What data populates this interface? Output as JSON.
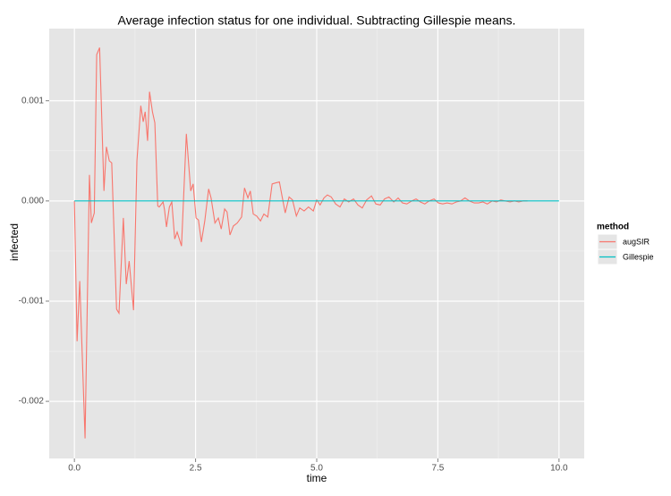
{
  "chart_data": {
    "type": "line",
    "title": "Average infection status for one individual. Subtracting Gillespie means.",
    "x_label": "time",
    "y_label": "infected",
    "legend_title": "method",
    "legend_position": "right",
    "grid": true,
    "xlim": [
      -0.52,
      10.52
    ],
    "ylim": [
      -0.00257,
      0.00172
    ],
    "xticks": [
      {
        "value": 0,
        "label": "0.0"
      },
      2.5,
      {
        "value": 5,
        "label": "5.0"
      },
      7.5,
      {
        "value": 10,
        "label": "10.0"
      }
    ],
    "yticks": [
      -0.002,
      -0.001,
      {
        "value": 0,
        "label": "0.000"
      },
      0.001
    ],
    "series": [
      {
        "name": "augSIR",
        "color": "#F8766D",
        "x": [
          0,
          0.055,
          0.11,
          0.22,
          0.31,
          0.35,
          0.41,
          0.46,
          0.52,
          0.61,
          0.66,
          0.72,
          0.77,
          0.87,
          0.92,
          1.01,
          1.07,
          1.13,
          1.22,
          1.29,
          1.37,
          1.42,
          1.46,
          1.51,
          1.55,
          1.61,
          1.66,
          1.72,
          1.75,
          1.83,
          1.86,
          1.9,
          1.96,
          2.01,
          2.07,
          2.12,
          2.21,
          2.31,
          2.4,
          2.45,
          2.51,
          2.56,
          2.62,
          2.69,
          2.77,
          2.82,
          2.9,
          2.97,
          3.03,
          3.1,
          3.15,
          3.21,
          3.28,
          3.36,
          3.45,
          3.51,
          3.58,
          3.63,
          3.69,
          3.76,
          3.84,
          3.91,
          3.99,
          4.08,
          4.15,
          4.23,
          4.28,
          4.35,
          4.43,
          4.5,
          4.58,
          4.65,
          4.74,
          4.83,
          4.93,
          5.0,
          5.07,
          5.15,
          5.22,
          5.3,
          5.39,
          5.48,
          5.57,
          5.66,
          5.76,
          5.85,
          5.94,
          6.03,
          6.13,
          6.22,
          6.31,
          6.4,
          6.49,
          6.59,
          6.68,
          6.77,
          6.86,
          6.96,
          7.05,
          7.14,
          7.23,
          7.32,
          7.42,
          7.51,
          7.6,
          7.69,
          7.79,
          7.88,
          7.97,
          8.06,
          8.15,
          8.25,
          8.34,
          8.43,
          8.52,
          8.62,
          8.71,
          8.8,
          8.89,
          8.99,
          9.08,
          9.17,
          9.26,
          9.35
        ],
        "values": [
          0,
          -0.0014,
          -0.0008,
          -0.00237,
          0.00026,
          -0.00022,
          -0.00012,
          0.00146,
          0.00153,
          0.0001,
          0.00054,
          0.0004,
          0.00038,
          -0.00108,
          -0.00112,
          -0.00017,
          -0.00083,
          -0.0006,
          -0.00109,
          0.0004,
          0.00095,
          0.00079,
          0.00089,
          0.0006,
          0.00109,
          0.00089,
          0.00078,
          -5e-05,
          -6e-05,
          -1e-05,
          -9e-05,
          -0.00026,
          -6e-05,
          -1e-05,
          -0.00038,
          -0.00031,
          -0.00045,
          0.00067,
          0.0001,
          0.00017,
          -0.00017,
          -0.00019,
          -0.00041,
          -0.0002,
          0.00012,
          3e-05,
          -0.00022,
          -0.00017,
          -0.00028,
          -8e-05,
          -0.00011,
          -0.00034,
          -0.00025,
          -0.00022,
          -0.00016,
          0.00013,
          3e-05,
          0.0001,
          -0.00013,
          -0.00015,
          -0.0002,
          -0.00013,
          -0.00016,
          0.00017,
          0.00018,
          0.00019,
          6e-05,
          -0.00012,
          4e-05,
          1e-05,
          -0.00015,
          -7e-05,
          -0.0001,
          -6e-05,
          -0.0001,
          1e-05,
          -4e-05,
          3e-05,
          6e-05,
          4e-05,
          -3e-05,
          -6e-05,
          2e-05,
          -1e-05,
          2e-05,
          -4e-05,
          -7e-05,
          1e-05,
          5e-05,
          -3e-05,
          -4e-05,
          2e-05,
          4e-05,
          -1e-05,
          3e-05,
          -2e-05,
          -3e-05,
          0,
          2e-05,
          -1e-05,
          -3e-05,
          0,
          2e-05,
          -2e-05,
          -3e-05,
          -2e-05,
          -3e-05,
          -1e-05,
          0,
          3e-05,
          0,
          -2e-05,
          -2e-05,
          -1e-05,
          -3e-05,
          0,
          -1e-05,
          1e-05,
          0,
          -1e-05,
          0,
          -1e-05,
          0,
          0
        ]
      },
      {
        "name": "Gillespie",
        "color": "#00BFC4",
        "x": [
          0,
          10
        ],
        "values": [
          0,
          0
        ]
      }
    ]
  }
}
